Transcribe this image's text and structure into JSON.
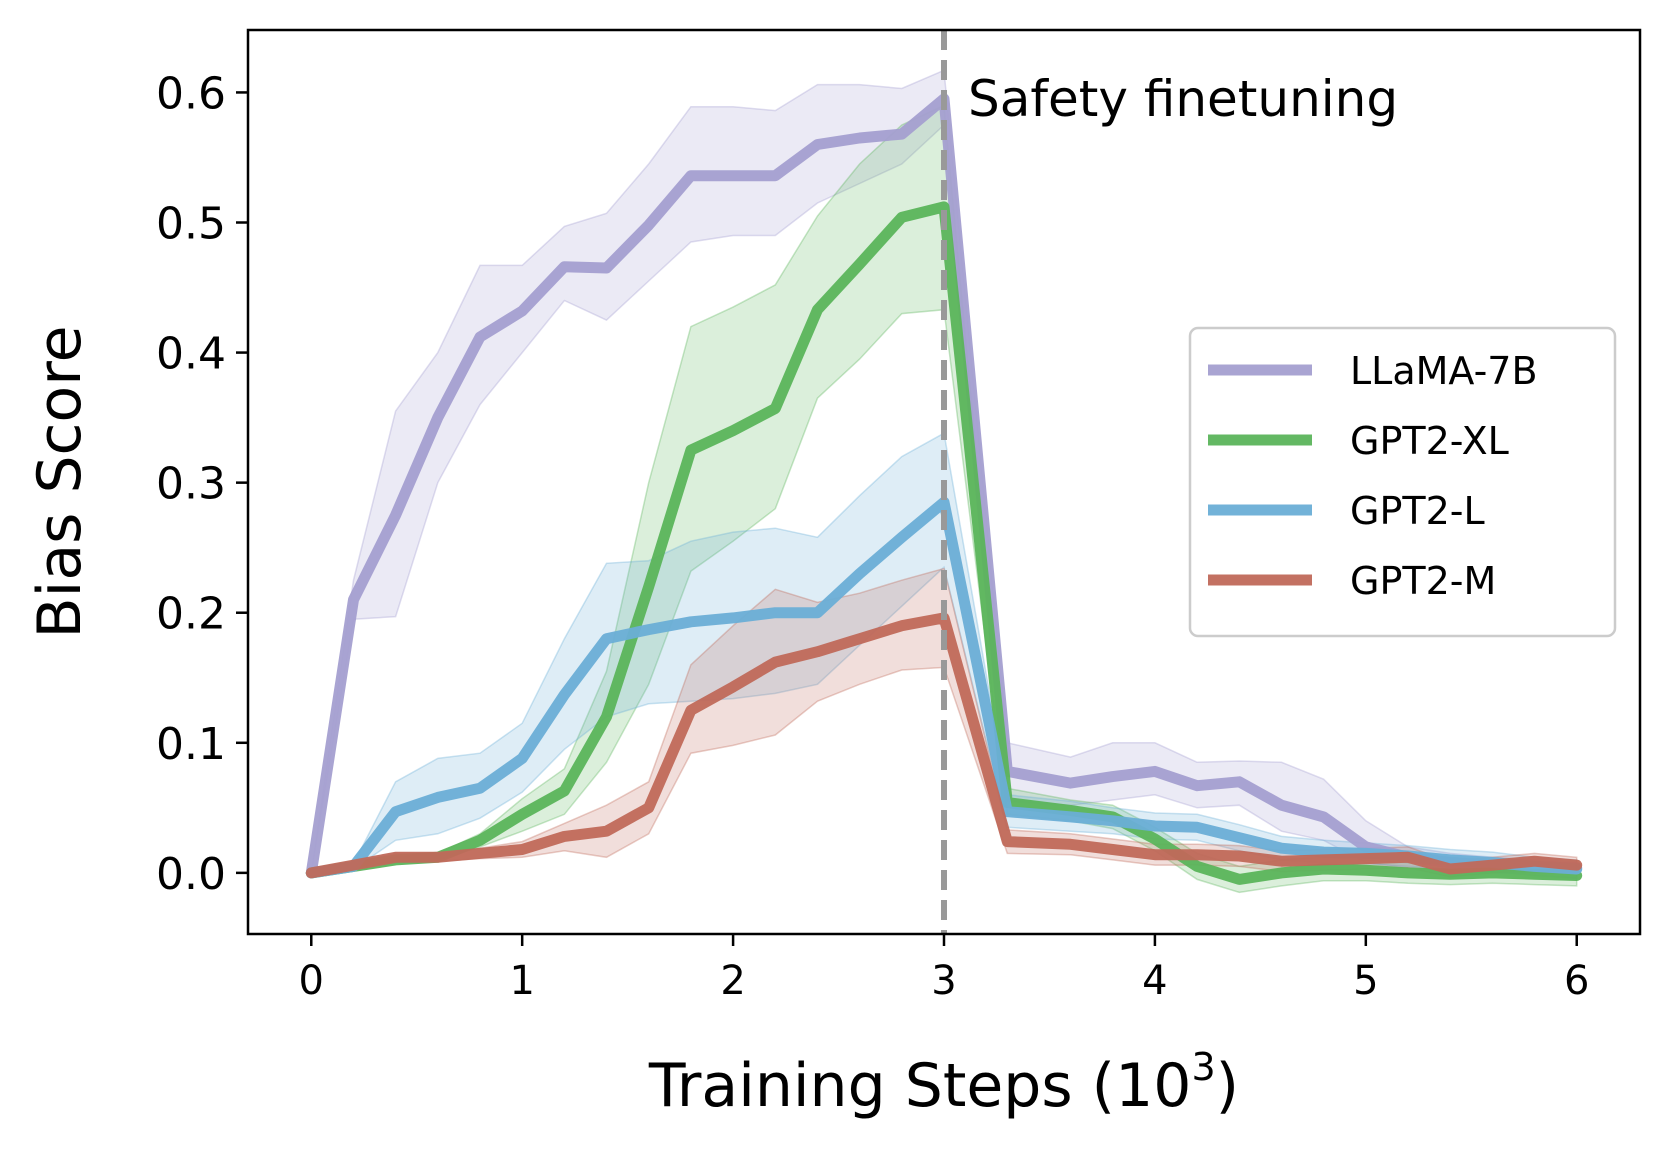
{
  "chart_data": {
    "type": "line",
    "xlabel": "Training Steps (10",
    "xlabel_superscript": "3",
    "xlabel_close": ")",
    "ylabel": "Bias Score",
    "xlim": [
      -0.3,
      6.3
    ],
    "ylim": [
      -0.047,
      0.648
    ],
    "x_ticks": [
      0,
      1,
      2,
      3,
      4,
      5,
      6
    ],
    "x_tick_labels": [
      "0",
      "1",
      "2",
      "3",
      "4",
      "5",
      "6"
    ],
    "y_ticks": [
      0.0,
      0.1,
      0.2,
      0.3,
      0.4,
      0.5,
      0.6
    ],
    "y_tick_labels": [
      "0.0",
      "0.1",
      "0.2",
      "0.3",
      "0.4",
      "0.5",
      "0.6"
    ],
    "vline": {
      "x": 3,
      "label": "Safety finetuning",
      "color": "#999999"
    },
    "legend_position": "center-right",
    "x": [
      0,
      0.2,
      0.4,
      0.6,
      0.8,
      1.0,
      1.2,
      1.4,
      1.6,
      1.8,
      2.0,
      2.2,
      2.4,
      2.6,
      2.8,
      3.0,
      3.3,
      3.6,
      3.8,
      4.0,
      4.2,
      4.4,
      4.6,
      4.8,
      5.0,
      5.2,
      5.4,
      5.6,
      5.8,
      6.0
    ],
    "series": [
      {
        "name": "LLaMA-7B",
        "color": "#a49fd0",
        "values": [
          0.0,
          0.21,
          0.275,
          0.35,
          0.412,
          0.432,
          0.466,
          0.465,
          0.498,
          0.536,
          0.536,
          0.536,
          0.56,
          0.565,
          0.568,
          0.595,
          0.078,
          0.069,
          0.074,
          0.078,
          0.067,
          0.07,
          0.052,
          0.043,
          0.02,
          0.012,
          0.008,
          0.006,
          0.005,
          0.004
        ],
        "lower": [
          0.0,
          0.195,
          0.197,
          0.3,
          0.36,
          0.4,
          0.44,
          0.425,
          0.455,
          0.485,
          0.49,
          0.49,
          0.515,
          0.53,
          0.545,
          0.575,
          0.055,
          0.052,
          0.056,
          0.06,
          0.05,
          0.052,
          0.032,
          0.025,
          0.008,
          0.004,
          0.002,
          0.0,
          0.0,
          0.0
        ],
        "upper": [
          0.0,
          0.225,
          0.355,
          0.4,
          0.467,
          0.467,
          0.497,
          0.507,
          0.545,
          0.589,
          0.589,
          0.586,
          0.606,
          0.606,
          0.603,
          0.617,
          0.1,
          0.089,
          0.1,
          0.1,
          0.085,
          0.086,
          0.085,
          0.072,
          0.04,
          0.02,
          0.015,
          0.012,
          0.01,
          0.008
        ]
      },
      {
        "name": "GPT2-XL",
        "color": "#5bb45b",
        "values": [
          0.0,
          0.005,
          0.01,
          0.012,
          0.025,
          0.045,
          0.063,
          0.12,
          0.22,
          0.325,
          0.34,
          0.357,
          0.433,
          0.468,
          0.504,
          0.512,
          0.054,
          0.048,
          0.043,
          0.026,
          0.005,
          -0.005,
          0.0,
          0.003,
          0.002,
          0.0,
          -0.001,
          0.0,
          -0.001,
          -0.002
        ],
        "lower": [
          0.0,
          0.003,
          0.008,
          0.01,
          0.02,
          0.032,
          0.045,
          0.085,
          0.145,
          0.232,
          0.255,
          0.28,
          0.365,
          0.395,
          0.43,
          0.433,
          0.045,
          0.04,
          0.034,
          0.017,
          -0.005,
          -0.015,
          -0.01,
          -0.006,
          -0.006,
          -0.008,
          -0.009,
          -0.008,
          -0.009,
          -0.01
        ],
        "upper": [
          0.0,
          0.007,
          0.012,
          0.015,
          0.03,
          0.057,
          0.08,
          0.155,
          0.3,
          0.42,
          0.435,
          0.452,
          0.505,
          0.545,
          0.575,
          0.59,
          0.065,
          0.056,
          0.052,
          0.035,
          0.015,
          0.005,
          0.01,
          0.012,
          0.01,
          0.008,
          0.007,
          0.008,
          0.007,
          0.006
        ]
      },
      {
        "name": "GPT2-L",
        "color": "#6aaed6",
        "values": [
          0.0,
          0.005,
          0.047,
          0.058,
          0.065,
          0.088,
          0.137,
          0.18,
          0.187,
          0.193,
          0.196,
          0.2,
          0.2,
          0.23,
          0.258,
          0.285,
          0.047,
          0.043,
          0.04,
          0.036,
          0.035,
          0.027,
          0.019,
          0.016,
          0.015,
          0.013,
          0.01,
          0.008,
          0.005,
          0.003
        ],
        "lower": [
          0.0,
          0.003,
          0.025,
          0.03,
          0.042,
          0.062,
          0.095,
          0.12,
          0.13,
          0.132,
          0.134,
          0.138,
          0.145,
          0.175,
          0.205,
          0.235,
          0.035,
          0.032,
          0.03,
          0.026,
          0.025,
          0.017,
          0.01,
          0.008,
          0.007,
          0.005,
          0.003,
          0.001,
          -0.002,
          -0.004
        ],
        "upper": [
          0.0,
          0.007,
          0.07,
          0.088,
          0.092,
          0.115,
          0.18,
          0.238,
          0.24,
          0.255,
          0.262,
          0.265,
          0.258,
          0.29,
          0.32,
          0.338,
          0.06,
          0.055,
          0.05,
          0.046,
          0.045,
          0.037,
          0.028,
          0.025,
          0.023,
          0.021,
          0.018,
          0.016,
          0.012,
          0.01
        ]
      },
      {
        "name": "GPT2-M",
        "color": "#c0695a",
        "values": [
          0.0,
          0.006,
          0.012,
          0.012,
          0.015,
          0.018,
          0.028,
          0.032,
          0.05,
          0.125,
          0.143,
          0.162,
          0.17,
          0.18,
          0.19,
          0.196,
          0.024,
          0.022,
          0.018,
          0.014,
          0.014,
          0.013,
          0.009,
          0.01,
          0.011,
          0.012,
          0.003,
          0.006,
          0.009,
          0.006
        ],
        "lower": [
          0.0,
          0.004,
          0.009,
          0.009,
          0.011,
          0.012,
          0.017,
          0.012,
          0.03,
          0.092,
          0.098,
          0.106,
          0.132,
          0.145,
          0.156,
          0.158,
          0.015,
          0.014,
          0.01,
          0.006,
          0.006,
          0.005,
          0.001,
          0.002,
          0.003,
          0.004,
          -0.003,
          0.0,
          0.003,
          0.0
        ],
        "upper": [
          0.0,
          0.008,
          0.015,
          0.015,
          0.019,
          0.024,
          0.038,
          0.052,
          0.07,
          0.16,
          0.19,
          0.218,
          0.208,
          0.215,
          0.225,
          0.234,
          0.033,
          0.03,
          0.026,
          0.022,
          0.022,
          0.021,
          0.017,
          0.018,
          0.019,
          0.02,
          0.009,
          0.012,
          0.015,
          0.012
        ]
      }
    ]
  }
}
